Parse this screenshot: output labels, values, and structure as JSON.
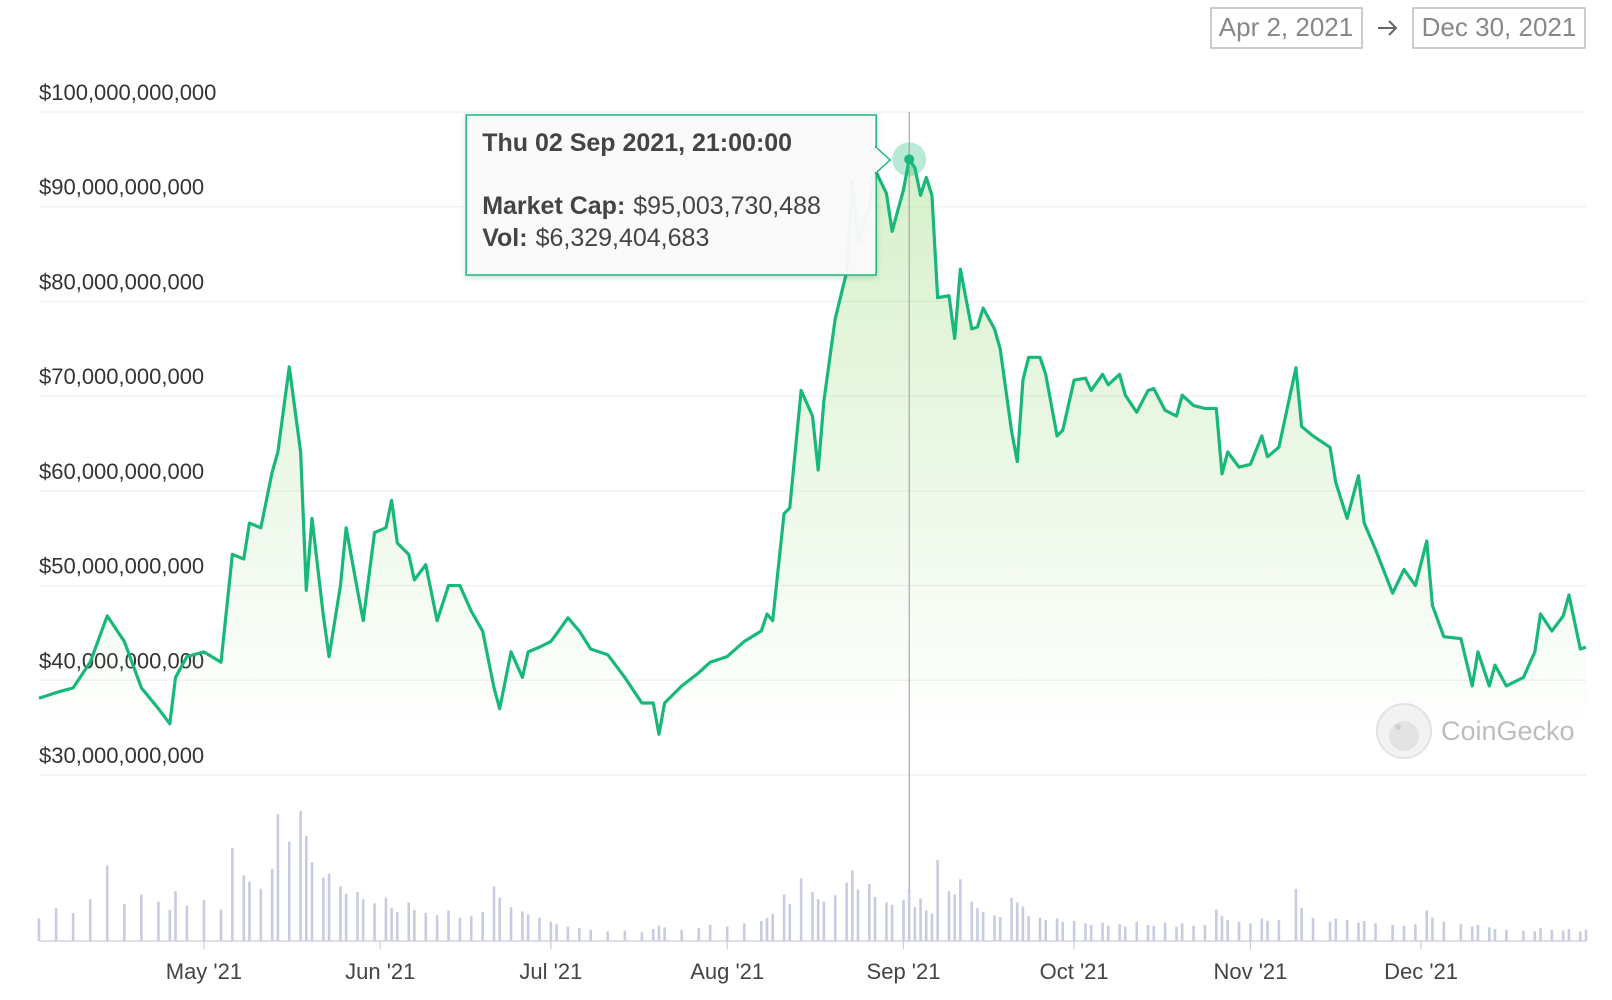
{
  "chart_data": {
    "type": "line",
    "date_range": {
      "from": "Apr 2, 2021",
      "to": "Dec 30, 2021"
    },
    "watermark": "CoinGecko",
    "x": [
      "2021-04-02",
      "2021-04-05",
      "2021-04-08",
      "2021-04-11",
      "2021-04-14",
      "2021-04-17",
      "2021-04-20",
      "2021-04-23",
      "2021-04-25",
      "2021-04-26",
      "2021-04-28",
      "2021-05-01",
      "2021-05-04",
      "2021-05-06",
      "2021-05-08",
      "2021-05-09",
      "2021-05-11",
      "2021-05-13",
      "2021-05-14",
      "2021-05-16",
      "2021-05-18",
      "2021-05-19",
      "2021-05-20",
      "2021-05-22",
      "2021-05-23",
      "2021-05-25",
      "2021-05-26",
      "2021-05-28",
      "2021-05-29",
      "2021-05-31",
      "2021-06-02",
      "2021-06-03",
      "2021-06-04",
      "2021-06-06",
      "2021-06-07",
      "2021-06-09",
      "2021-06-11",
      "2021-06-13",
      "2021-06-15",
      "2021-06-17",
      "2021-06-19",
      "2021-06-21",
      "2021-06-22",
      "2021-06-24",
      "2021-06-26",
      "2021-06-27",
      "2021-06-29",
      "2021-07-01",
      "2021-07-02",
      "2021-07-04",
      "2021-07-06",
      "2021-07-08",
      "2021-07-11",
      "2021-07-14",
      "2021-07-17",
      "2021-07-19",
      "2021-07-20",
      "2021-07-21",
      "2021-07-24",
      "2021-07-27",
      "2021-07-29",
      "2021-08-01",
      "2021-08-04",
      "2021-08-07",
      "2021-08-08",
      "2021-08-09",
      "2021-08-11",
      "2021-08-12",
      "2021-08-14",
      "2021-08-16",
      "2021-08-17",
      "2021-08-18",
      "2021-08-20",
      "2021-08-22",
      "2021-08-23",
      "2021-08-24",
      "2021-08-26",
      "2021-08-27",
      "2021-08-29",
      "2021-08-30",
      "2021-09-01",
      "2021-09-02",
      "2021-09-03",
      "2021-09-04",
      "2021-09-05",
      "2021-09-06",
      "2021-09-07",
      "2021-09-09",
      "2021-09-10",
      "2021-09-11",
      "2021-09-13",
      "2021-09-14",
      "2021-09-15",
      "2021-09-17",
      "2021-09-18",
      "2021-09-20",
      "2021-09-21",
      "2021-09-22",
      "2021-09-23",
      "2021-09-25",
      "2021-09-26",
      "2021-09-28",
      "2021-09-29",
      "2021-10-01",
      "2021-10-03",
      "2021-10-04",
      "2021-10-06",
      "2021-10-07",
      "2021-10-09",
      "2021-10-10",
      "2021-10-12",
      "2021-10-14",
      "2021-10-15",
      "2021-10-17",
      "2021-10-19",
      "2021-10-20",
      "2021-10-22",
      "2021-10-24",
      "2021-10-26",
      "2021-10-27",
      "2021-10-28",
      "2021-10-30",
      "2021-11-01",
      "2021-11-03",
      "2021-11-04",
      "2021-11-06",
      "2021-11-09",
      "2021-11-10",
      "2021-11-12",
      "2021-11-15",
      "2021-11-16",
      "2021-11-18",
      "2021-11-20",
      "2021-11-21",
      "2021-11-23",
      "2021-11-26",
      "2021-11-28",
      "2021-11-30",
      "2021-12-02",
      "2021-12-03",
      "2021-12-05",
      "2021-12-08",
      "2021-12-10",
      "2021-12-11",
      "2021-12-13",
      "2021-12-14",
      "2021-12-16",
      "2021-12-19",
      "2021-12-21",
      "2021-12-22",
      "2021-12-24",
      "2021-12-26",
      "2021-12-27",
      "2021-12-29",
      "2021-12-30"
    ],
    "series": [
      {
        "name": "Market Cap:",
        "color": "#18b87a",
        "values": [
          38100000000.0,
          38700000000.0,
          39200000000.0,
          41900000000.0,
          46800000000.0,
          44100000000.0,
          39200000000.0,
          37000000000.0,
          35400000000.0,
          40300000000.0,
          42500000000.0,
          43000000000.0,
          41900000000.0,
          53300000000.0,
          52800000000.0,
          56600000000.0,
          56100000000.0,
          62000000000.0,
          64100000000.0,
          73100000000.0,
          64100000000.0,
          49500000000.0,
          57100000000.0,
          46800000000.0,
          42500000000.0,
          50000000000.0,
          56100000000.0,
          49500000000.0,
          46300000000.0,
          55600000000.0,
          56100000000.0,
          59000000000.0,
          54500000000.0,
          53300000000.0,
          50600000000.0,
          52200000000.0,
          46300000000.0,
          50000000000.0,
          50000000000.0,
          47300000000.0,
          45200000000.0,
          39200000000.0,
          37000000000.0,
          43000000000.0,
          40300000000.0,
          43000000000.0,
          43500000000.0,
          44100000000.0,
          44900000000.0,
          46600000000.0,
          45200000000.0,
          43300000000.0,
          42700000000.0,
          40300000000.0,
          37600000000.0,
          37600000000.0,
          34300000000.0,
          37600000000.0,
          39400000000.0,
          40800000000.0,
          41900000000.0,
          42500000000.0,
          44100000000.0,
          45200000000.0,
          47000000000.0,
          46300000000.0,
          57600000000.0,
          58200000000.0,
          70600000000.0,
          67900000000.0,
          62200000000.0,
          69500000000.0,
          78200000000.0,
          83100000000.0,
          92800000000.0,
          86300000000.0,
          90100000000.0,
          93900000000.0,
          91400000000.0,
          87400000000.0,
          91800000000.0,
          95003730488,
          94100000000.0,
          91200000000.0,
          93100000000.0,
          91200000000.0,
          80400000000.0,
          80600000000.0,
          76100000000.0,
          83400000000.0,
          77100000000.0,
          77300000000.0,
          79300000000.0,
          77100000000.0,
          75000000000.0,
          66300000000.0,
          63100000000.0,
          71700000000.0,
          74100000000.0,
          74100000000.0,
          72300000000.0,
          65800000000.0,
          66400000000.0,
          71700000000.0,
          71900000000.0,
          70600000000.0,
          72300000000.0,
          71200000000.0,
          72300000000.0,
          70100000000.0,
          68300000000.0,
          70600000000.0,
          70800000000.0,
          68500000000.0,
          67900000000.0,
          70100000000.0,
          69000000000.0,
          68700000000.0,
          68700000000.0,
          61800000000.0,
          64100000000.0,
          62500000000.0,
          62800000000.0,
          65800000000.0,
          63600000000.0,
          64600000000.0,
          73000000000.0,
          66800000000.0,
          65800000000.0,
          64600000000.0,
          60900000000.0,
          57100000000.0,
          61600000000.0,
          56600000000.0,
          53800000000.0,
          49200000000.0,
          51700000000.0,
          50000000000.0,
          54700000000.0,
          47900000000.0,
          44600000000.0,
          44400000000.0,
          39400000000.0,
          43000000000.0,
          39400000000.0,
          41600000000.0,
          39400000000.0,
          40300000000.0,
          43000000000.0,
          47000000000.0,
          45200000000.0,
          46800000000.0,
          49000000000.0,
          43300000000.0,
          43500000000.0
        ]
      },
      {
        "name": "Vol:",
        "color": "#c8cce0",
        "values": [
          2800000000.0,
          4100000000.0,
          3500000000.0,
          5200000000.0,
          9400000000.0,
          4600000000.0,
          5800000000.0,
          4900000000.0,
          3900000000.0,
          6200000000.0,
          4400000000.0,
          5100000000.0,
          3900000000.0,
          11600000000.0,
          8200000000.0,
          7400000000.0,
          6500000000.0,
          9000000000.0,
          15800000000.0,
          12400000000.0,
          16200000000.0,
          13100000000.0,
          9800000000.0,
          7900000000.0,
          8400000000.0,
          6800000000.0,
          5900000000.0,
          6100000000.0,
          5200000000.0,
          4700000000.0,
          5400000000.0,
          4100000000.0,
          3600000000.0,
          4800000000.0,
          3900000000.0,
          3500000000.0,
          3200000000.0,
          3800000000.0,
          2900000000.0,
          3100000000.0,
          3600000000.0,
          6800000000.0,
          5400000000.0,
          4200000000.0,
          3700000000.0,
          3300000000.0,
          2900000000.0,
          2400000000.0,
          2100000000.0,
          1800000000.0,
          1600000000.0,
          1400000000.0,
          1200000000.0,
          1300000000.0,
          1100000000.0,
          1500000000.0,
          1900000000.0,
          1700000000.0,
          1400000000.0,
          1600000000.0,
          2000000000.0,
          1800000000.0,
          2200000000.0,
          2500000000.0,
          2900000000.0,
          3400000000.0,
          5800000000.0,
          4600000000.0,
          7800000000.0,
          6100000000.0,
          5200000000.0,
          4900000000.0,
          5700000000.0,
          7300000000.0,
          8800000000.0,
          6400000000.0,
          7100000000.0,
          5500000000.0,
          4800000000.0,
          4500000000.0,
          5100000000.0,
          6329404683,
          4200000000.0,
          5300000000.0,
          3800000000.0,
          3400000000.0,
          10100000000.0,
          6200000000.0,
          5800000000.0,
          7700000000.0,
          4900000000.0,
          4100000000.0,
          3600000000.0,
          3200000000.0,
          3000000000.0,
          5400000000.0,
          4800000000.0,
          4300000000.0,
          3100000000.0,
          2900000000.0,
          2600000000.0,
          2800000000.0,
          2400000000.0,
          2500000000.0,
          2200000000.0,
          2000000000.0,
          2300000000.0,
          1900000000.0,
          2100000000.0,
          1800000000.0,
          2400000000.0,
          2000000000.0,
          1900000000.0,
          2300000000.0,
          1800000000.0,
          2200000000.0,
          1900000000.0,
          2000000000.0,
          3900000000.0,
          3100000000.0,
          2600000000.0,
          2400000000.0,
          2200000000.0,
          2800000000.0,
          2500000000.0,
          2600000000.0,
          6500000000.0,
          4100000000.0,
          2900000000.0,
          2400000000.0,
          2800000000.0,
          2600000000.0,
          2300000000.0,
          2500000000.0,
          2200000000.0,
          2000000000.0,
          1900000000.0,
          2100000000.0,
          3800000000.0,
          2900000000.0,
          2400000000.0,
          2100000000.0,
          1800000000.0,
          2000000000.0,
          1700000000.0,
          1500000000.0,
          1400000000.0,
          1300000000.0,
          1200000000.0,
          1600000000.0,
          1400000000.0,
          1300000000.0,
          1500000000.0,
          1200000000.0,
          1400000000.0
        ]
      }
    ],
    "xlim": [
      "2021-04-02",
      "2021-12-30"
    ],
    "xticks": [
      {
        "value": "2021-05-01",
        "label": "May '21"
      },
      {
        "value": "2021-06-01",
        "label": "Jun '21"
      },
      {
        "value": "2021-07-01",
        "label": "Jul '21"
      },
      {
        "value": "2021-08-01",
        "label": "Aug '21"
      },
      {
        "value": "2021-09-01",
        "label": "Sep '21"
      },
      {
        "value": "2021-10-01",
        "label": "Oct '21"
      },
      {
        "value": "2021-11-01",
        "label": "Nov '21"
      },
      {
        "value": "2021-12-01",
        "label": "Dec '21"
      }
    ],
    "ylim": [
      30000000000,
      100000000000
    ],
    "yticks": [
      {
        "value": 30000000000,
        "label": "$30,000,000,000"
      },
      {
        "value": 40000000000,
        "label": "$40,000,000,000"
      },
      {
        "value": 50000000000,
        "label": "$50,000,000,000"
      },
      {
        "value": 60000000000,
        "label": "$60,000,000,000"
      },
      {
        "value": 70000000000,
        "label": "$70,000,000,000"
      },
      {
        "value": 80000000000,
        "label": "$80,000,000,000"
      },
      {
        "value": 90000000000,
        "label": "$90,000,000,000"
      },
      {
        "value": 100000000000,
        "label": "$100,000,000,000"
      }
    ],
    "grid": true,
    "tooltip": {
      "x": "2021-09-02 21:00:00",
      "title": "Thu 02 Sep 2021, 21:00:00",
      "value_labels": [
        "$95,003,730,488",
        "$6,329,404,683"
      ]
    }
  }
}
